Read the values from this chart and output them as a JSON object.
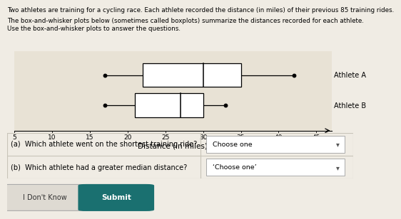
{
  "athlete_a": {
    "min": 17,
    "q1": 22,
    "median": 30,
    "q3": 35,
    "max": 42
  },
  "athlete_b": {
    "min": 17,
    "q1": 21,
    "median": 27,
    "q3": 30,
    "max": 33
  },
  "xmin": 5,
  "xmax": 47,
  "xticks": [
    5,
    10,
    15,
    20,
    25,
    30,
    35,
    40,
    45
  ],
  "xlabel": "Distance (in miles)",
  "label_a": "Athlete A",
  "label_b": "Athlete B",
  "background_color": "#f0ece4",
  "box_color": "#ffffff",
  "line_color": "#000000",
  "plot_bg": "#e8e2d5",
  "title_line1": "Two athletes are training for a cycling race. Each athlete recorded the distance (in miles) of their previous 85 training rides.",
  "subtitle_line1": "The box-and-whisker plots below (sometimes called boxplots) summarize the distances recorded for each athlete.",
  "subtitle_line2": "Use the box-and-whisker plots to answer the questions.",
  "qa_text_a": "(a)  Which athlete went on the shortest training ride?",
  "qa_text_b": "(b)  Which athlete had a greater median distance?",
  "choose_one_a": "Choose one",
  "choose_one_b": "‘Choose one’",
  "button_submit": "Submit",
  "button_idontknow": "I Don't Know",
  "border_color": "#c8c4b8"
}
